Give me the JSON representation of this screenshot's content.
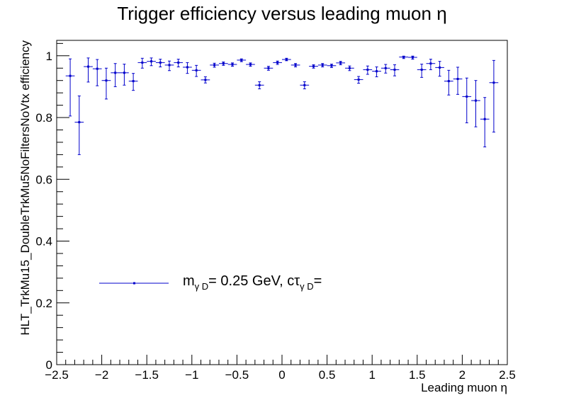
{
  "chart_data": {
    "type": "scatter",
    "title": "Trigger efficiency versus leading muon η",
    "xlabel": "Leading muon η",
    "ylabel": "HLT_TrkMu15_DoubleTrkMu5NoFiltersNoVtx efficiency",
    "xlim": [
      -2.5,
      2.5
    ],
    "ylim": [
      0,
      1.05
    ],
    "x_ticks": [
      "−2.5",
      "−2",
      "−1.5",
      "−1",
      "−0.5",
      "0",
      "0.5",
      "1",
      "1.5",
      "2",
      "2.5"
    ],
    "y_ticks": [
      "0",
      "0.2",
      "0.4",
      "0.6",
      "0.8",
      "1"
    ],
    "grid": false,
    "legend_position": "bottom-left",
    "colors": {
      "series": "#0000cc",
      "axes": "#000000",
      "background": "#ffffff"
    },
    "legend": {
      "m": "m",
      "m_sub": "γ D",
      "mid": "= 0.25 GeV, cτ",
      "tau_sub": "γ D",
      "end": "="
    },
    "series": [
      {
        "x_half_width": 0.05,
        "points": [
          {
            "x": -2.35,
            "y": 0.935,
            "err_lo": 0.13,
            "err_hi": 0.055
          },
          {
            "x": -2.25,
            "y": 0.785,
            "err_lo": 0.105,
            "err_hi": 0.085
          },
          {
            "x": -2.15,
            "y": 0.965,
            "err_lo": 0.05,
            "err_hi": 0.028
          },
          {
            "x": -2.05,
            "y": 0.958,
            "err_lo": 0.055,
            "err_hi": 0.03
          },
          {
            "x": -1.95,
            "y": 0.92,
            "err_lo": 0.06,
            "err_hi": 0.04
          },
          {
            "x": -1.85,
            "y": 0.945,
            "err_lo": 0.045,
            "err_hi": 0.03
          },
          {
            "x": -1.75,
            "y": 0.945,
            "err_lo": 0.04,
            "err_hi": 0.028
          },
          {
            "x": -1.65,
            "y": 0.918,
            "err_lo": 0.03,
            "err_hi": 0.025
          },
          {
            "x": -1.55,
            "y": 0.978,
            "err_lo": 0.018,
            "err_hi": 0.014
          },
          {
            "x": -1.45,
            "y": 0.982,
            "err_lo": 0.014,
            "err_hi": 0.011
          },
          {
            "x": -1.35,
            "y": 0.978,
            "err_lo": 0.014,
            "err_hi": 0.011
          },
          {
            "x": -1.25,
            "y": 0.97,
            "err_lo": 0.018,
            "err_hi": 0.013
          },
          {
            "x": -1.15,
            "y": 0.978,
            "err_lo": 0.014,
            "err_hi": 0.011
          },
          {
            "x": -1.05,
            "y": 0.963,
            "err_lo": 0.02,
            "err_hi": 0.015
          },
          {
            "x": -0.95,
            "y": 0.953,
            "err_lo": 0.02,
            "err_hi": 0.016
          },
          {
            "x": -0.85,
            "y": 0.922,
            "err_lo": 0.01,
            "err_hi": 0.01
          },
          {
            "x": -0.75,
            "y": 0.97,
            "err_lo": 0.007,
            "err_hi": 0.006
          },
          {
            "x": -0.65,
            "y": 0.975,
            "err_lo": 0.006,
            "err_hi": 0.005
          },
          {
            "x": -0.55,
            "y": 0.972,
            "err_lo": 0.006,
            "err_hi": 0.005
          },
          {
            "x": -0.45,
            "y": 0.986,
            "err_lo": 0.005,
            "err_hi": 0.004
          },
          {
            "x": -0.35,
            "y": 0.972,
            "err_lo": 0.006,
            "err_hi": 0.005
          },
          {
            "x": -0.25,
            "y": 0.905,
            "err_lo": 0.012,
            "err_hi": 0.011
          },
          {
            "x": -0.15,
            "y": 0.96,
            "err_lo": 0.007,
            "err_hi": 0.006
          },
          {
            "x": -0.05,
            "y": 0.978,
            "err_lo": 0.006,
            "err_hi": 0.005
          },
          {
            "x": 0.05,
            "y": 0.988,
            "err_lo": 0.004,
            "err_hi": 0.004
          },
          {
            "x": 0.15,
            "y": 0.97,
            "err_lo": 0.006,
            "err_hi": 0.005
          },
          {
            "x": 0.25,
            "y": 0.905,
            "err_lo": 0.012,
            "err_hi": 0.011
          },
          {
            "x": 0.35,
            "y": 0.966,
            "err_lo": 0.006,
            "err_hi": 0.005
          },
          {
            "x": 0.45,
            "y": 0.97,
            "err_lo": 0.006,
            "err_hi": 0.005
          },
          {
            "x": 0.55,
            "y": 0.968,
            "err_lo": 0.006,
            "err_hi": 0.005
          },
          {
            "x": 0.65,
            "y": 0.977,
            "err_lo": 0.006,
            "err_hi": 0.005
          },
          {
            "x": 0.75,
            "y": 0.96,
            "err_lo": 0.008,
            "err_hi": 0.007
          },
          {
            "x": 0.85,
            "y": 0.923,
            "err_lo": 0.012,
            "err_hi": 0.01
          },
          {
            "x": 0.95,
            "y": 0.955,
            "err_lo": 0.015,
            "err_hi": 0.012
          },
          {
            "x": 1.05,
            "y": 0.95,
            "err_lo": 0.018,
            "err_hi": 0.014
          },
          {
            "x": 1.15,
            "y": 0.96,
            "err_lo": 0.016,
            "err_hi": 0.012
          },
          {
            "x": 1.25,
            "y": 0.955,
            "err_lo": 0.02,
            "err_hi": 0.016
          },
          {
            "x": 1.35,
            "y": 0.996,
            "err_lo": 0.005,
            "err_hi": 0.003
          },
          {
            "x": 1.45,
            "y": 0.995,
            "err_lo": 0.006,
            "err_hi": 0.004
          },
          {
            "x": 1.55,
            "y": 0.955,
            "err_lo": 0.025,
            "err_hi": 0.018
          },
          {
            "x": 1.65,
            "y": 0.975,
            "err_lo": 0.02,
            "err_hi": 0.014
          },
          {
            "x": 1.75,
            "y": 0.962,
            "err_lo": 0.028,
            "err_hi": 0.02
          },
          {
            "x": 1.85,
            "y": 0.918,
            "err_lo": 0.045,
            "err_hi": 0.035
          },
          {
            "x": 1.95,
            "y": 0.925,
            "err_lo": 0.05,
            "err_hi": 0.038
          },
          {
            "x": 2.05,
            "y": 0.868,
            "err_lo": 0.085,
            "err_hi": 0.06
          },
          {
            "x": 2.15,
            "y": 0.855,
            "err_lo": 0.085,
            "err_hi": 0.065
          },
          {
            "x": 2.25,
            "y": 0.795,
            "err_lo": 0.09,
            "err_hi": 0.07
          },
          {
            "x": 2.35,
            "y": 0.913,
            "err_lo": 0.16,
            "err_hi": 0.072
          }
        ]
      }
    ]
  }
}
